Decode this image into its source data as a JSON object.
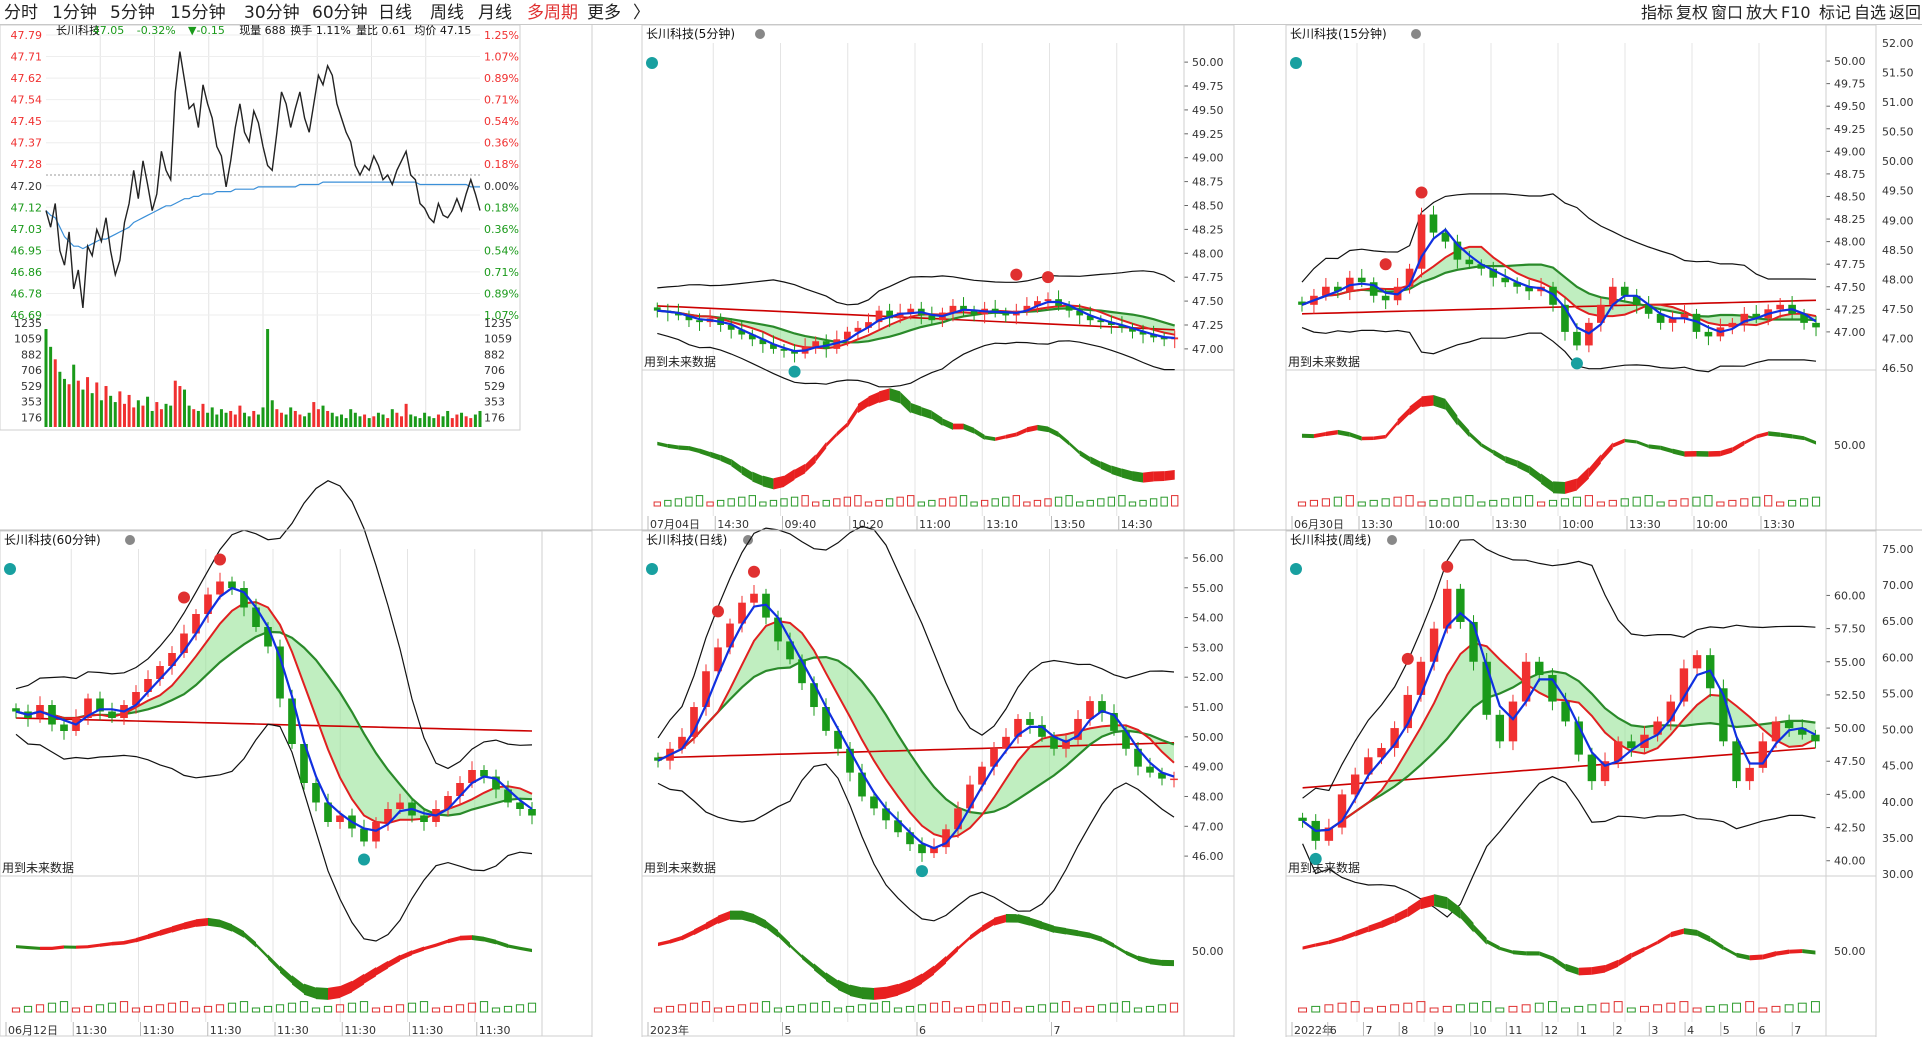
{
  "toolbar": {
    "periods": [
      "分时",
      "1分钟",
      "5分钟",
      "15分钟",
      "30分钟",
      "60分钟",
      "日线",
      "周线",
      "月线",
      "多周期",
      "更多"
    ],
    "selected": "多周期",
    "more_arrow": "〉",
    "right_items": [
      "指标",
      "复权",
      "窗口",
      "放大",
      "F10",
      "标记",
      "自选",
      "返回"
    ]
  },
  "colors": {
    "up": "#f03030",
    "down": "#1a9a1a",
    "avg": "#3a8fd8",
    "blue": "#1030e0",
    "cloud": "#8de08d",
    "cyan": "#a8e4e8"
  },
  "note_text": "用到未来数据",
  "chart_data": [
    {
      "id": "intraday",
      "type": "line",
      "title": "长川科技",
      "info": {
        "price": "47.05",
        "change_pct": "-0.32%",
        "change_amt": "▼-0.15",
        "vol_label": "现量 688",
        "turnover_label": "换手 1.11%",
        "ratio_label": "量比 0.61",
        "avg_label": "均价 47.15"
      },
      "prev_close": 47.2,
      "ylim": [
        46.61,
        47.79
      ],
      "price_ticks": [
        "47.79",
        "47.71",
        "47.62",
        "47.54",
        "47.45",
        "47.37",
        "47.28",
        "47.20",
        "47.12",
        "47.03",
        "46.95",
        "46.86",
        "46.78",
        "46.69"
      ],
      "pct_ticks": [
        "1.25%",
        "1.07%",
        "0.89%",
        "0.71%",
        "0.54%",
        "0.36%",
        "0.18%",
        "0.00%",
        "0.18%",
        "0.36%",
        "0.54%",
        "0.71%",
        "0.89%",
        "1.07%"
      ],
      "vol_ticks": [
        "1235",
        "1059",
        "882",
        "706",
        "529",
        "353",
        "176"
      ],
      "price": [
        47.05,
        46.98,
        47.08,
        46.88,
        46.82,
        46.96,
        46.72,
        46.8,
        46.64,
        46.9,
        46.86,
        46.97,
        46.92,
        47.02,
        46.88,
        46.78,
        46.84,
        47.0,
        47.08,
        47.22,
        47.1,
        47.26,
        47.16,
        47.05,
        47.12,
        47.3,
        47.22,
        47.18,
        47.55,
        47.72,
        47.6,
        47.48,
        47.5,
        47.4,
        47.58,
        47.5,
        47.44,
        47.32,
        47.28,
        47.15,
        47.26,
        47.4,
        47.5,
        47.38,
        47.34,
        47.47,
        47.42,
        47.32,
        47.24,
        47.22,
        47.38,
        47.55,
        47.5,
        47.4,
        47.48,
        47.55,
        47.44,
        47.38,
        47.5,
        47.62,
        47.58,
        47.66,
        47.62,
        47.5,
        47.44,
        47.38,
        47.34,
        47.24,
        47.2,
        47.24,
        47.22,
        47.28,
        47.24,
        47.18,
        47.2,
        47.16,
        47.22,
        47.26,
        47.3,
        47.2,
        47.18,
        47.08,
        47.06,
        47.02,
        47.0,
        47.08,
        47.03,
        47.02,
        47.05,
        47.1,
        47.05,
        47.12,
        47.18,
        47.12,
        47.05
      ],
      "avg": [
        47.05,
        47.03,
        47.02,
        46.98,
        46.94,
        46.92,
        46.9,
        46.9,
        46.89,
        46.9,
        46.91,
        46.92,
        46.93,
        46.93,
        46.94,
        46.95,
        46.96,
        46.97,
        46.98,
        47.0,
        47.01,
        47.02,
        47.03,
        47.04,
        47.05,
        47.06,
        47.07,
        47.07,
        47.08,
        47.09,
        47.1,
        47.1,
        47.11,
        47.11,
        47.12,
        47.12,
        47.12,
        47.13,
        47.13,
        47.13,
        47.13,
        47.14,
        47.14,
        47.14,
        47.14,
        47.14,
        47.15,
        47.15,
        47.15,
        47.15,
        47.15,
        47.15,
        47.15,
        47.15,
        47.15,
        47.16,
        47.16,
        47.16,
        47.16,
        47.16,
        47.17,
        47.17,
        47.17,
        47.17,
        47.17,
        47.17,
        47.17,
        47.17,
        47.17,
        47.17,
        47.17,
        47.17,
        47.17,
        47.17,
        47.17,
        47.17,
        47.17,
        47.17,
        47.17,
        47.17,
        47.17,
        47.16,
        47.16,
        47.16,
        47.16,
        47.16,
        47.16,
        47.16,
        47.16,
        47.16,
        47.16,
        47.16,
        47.15,
        47.15,
        47.15
      ],
      "volume": [
        1100,
        900,
        760,
        620,
        540,
        480,
        700,
        520,
        420,
        560,
        380,
        500,
        300,
        460,
        350,
        280,
        400,
        260,
        360,
        220,
        300,
        240,
        340,
        180,
        280,
        200,
        260,
        240,
        520,
        460,
        420,
        240,
        200,
        180,
        260,
        160,
        220,
        140,
        200,
        160,
        180,
        140,
        240,
        160,
        120,
        180,
        140,
        220,
        1100,
        300,
        200,
        160,
        140,
        220,
        180,
        140,
        120,
        160,
        280,
        200,
        240,
        180,
        160,
        120,
        140,
        100,
        200,
        160,
        120,
        140,
        100,
        120,
        160,
        140,
        100,
        200,
        160,
        120,
        260,
        140,
        120,
        100,
        160,
        120,
        100,
        140,
        120,
        180,
        100,
        140,
        160,
        120,
        100,
        140,
        180
      ]
    },
    {
      "id": "k5",
      "type": "candlestick",
      "title": "长川科技(5分钟)",
      "ylim": [
        46.8,
        50.2
      ],
      "y_ticks": [
        "50.00",
        "49.75",
        "49.50",
        "49.25",
        "49.00",
        "48.75",
        "48.50",
        "48.25",
        "48.00",
        "47.75",
        "47.50",
        "47.25",
        "47.00"
      ],
      "x_labels": [
        "07月04日",
        "14:30",
        "09:40",
        "10:20",
        "11:00",
        "13:10",
        "13:50",
        "14:30"
      ],
      "osc_tick": "",
      "closes": [
        47.4,
        47.38,
        47.35,
        47.3,
        47.28,
        47.32,
        47.25,
        47.2,
        47.15,
        47.1,
        47.05,
        47.0,
        46.98,
        46.95,
        47.02,
        47.08,
        47.0,
        47.1,
        47.18,
        47.22,
        47.28,
        47.4,
        47.32,
        47.38,
        47.42,
        47.35,
        47.3,
        47.38,
        47.45,
        47.4,
        47.36,
        47.42,
        47.38,
        47.35,
        47.4,
        47.45,
        47.5,
        47.52,
        47.45,
        47.4,
        47.35,
        47.3,
        47.28,
        47.25,
        47.22,
        47.18,
        47.15,
        47.12,
        47.1,
        47.12
      ],
      "mean_start": 47.45,
      "mean_end": 47.2
    },
    {
      "id": "k15",
      "type": "candlestick",
      "title": "长川科技(15分钟)",
      "ylim": [
        46.6,
        50.2
      ],
      "y_ticks": [
        "50.00",
        "49.75",
        "49.50",
        "49.25",
        "49.00",
        "48.75",
        "48.50",
        "48.25",
        "48.00",
        "47.75",
        "47.50",
        "47.25",
        "47.00"
      ],
      "right_ticks": [
        "52.00",
        "51.50",
        "51.00",
        "50.50",
        "50.00",
        "49.50",
        "49.00",
        "48.50",
        "48.00",
        "47.50",
        "47.00",
        "46.50"
      ],
      "x_labels": [
        "06月30日",
        "13:30",
        "10:00",
        "13:30",
        "10:00",
        "13:30",
        "10:00",
        "13:30"
      ],
      "osc_tick": "50.00",
      "closes": [
        47.3,
        47.4,
        47.5,
        47.45,
        47.6,
        47.55,
        47.4,
        47.35,
        47.5,
        47.7,
        48.3,
        48.1,
        48.0,
        47.8,
        47.75,
        47.7,
        47.6,
        47.55,
        47.5,
        47.45,
        47.5,
        47.3,
        47.0,
        46.85,
        47.1,
        47.3,
        47.5,
        47.4,
        47.3,
        47.2,
        47.1,
        47.15,
        47.2,
        47.0,
        46.95,
        47.05,
        47.1,
        47.2,
        47.15,
        47.25,
        47.3,
        47.2,
        47.1,
        47.05
      ],
      "mean_start": 47.2,
      "mean_end": 47.35
    },
    {
      "id": "k60",
      "type": "candlestick",
      "title": "长川科技(60分钟)",
      "ylim": [
        46.5,
        51.5
      ],
      "y_ticks": [],
      "x_labels": [
        "06月12日",
        "11:30",
        "11:30",
        "11:30",
        "11:30",
        "11:30",
        "11:30",
        "11:30"
      ],
      "osc_tick": "",
      "closes": [
        49.0,
        48.9,
        49.1,
        48.8,
        48.7,
        48.9,
        49.2,
        49.0,
        48.9,
        49.1,
        49.3,
        49.5,
        49.7,
        49.9,
        50.2,
        50.5,
        50.8,
        51.0,
        50.9,
        50.6,
        50.3,
        50.0,
        49.2,
        48.5,
        47.9,
        47.6,
        47.3,
        47.4,
        47.2,
        47.0,
        47.3,
        47.5,
        47.6,
        47.4,
        47.3,
        47.5,
        47.7,
        47.9,
        48.1,
        48.0,
        47.8,
        47.6,
        47.5,
        47.4
      ],
      "mean_start": 48.9,
      "mean_end": 48.7
    },
    {
      "id": "kday",
      "type": "candlestick",
      "title": "长川科技(日线)",
      "ylim": [
        45.4,
        56.3
      ],
      "y_ticks": [
        "56.00",
        "55.00",
        "54.00",
        "53.00",
        "52.00",
        "51.00",
        "50.00",
        "49.00",
        "48.00",
        "47.00",
        "46.00"
      ],
      "x_labels": [
        "2023年",
        "5",
        "6",
        "7"
      ],
      "osc_tick": "50.00",
      "closes": [
        49.2,
        49.6,
        50.0,
        51.0,
        52.2,
        53.0,
        53.8,
        54.5,
        54.8,
        54.0,
        53.2,
        52.6,
        51.8,
        51.0,
        50.2,
        49.6,
        48.8,
        48.0,
        47.6,
        47.2,
        46.8,
        46.4,
        46.1,
        46.3,
        46.9,
        47.6,
        48.4,
        49.0,
        49.6,
        50.0,
        50.6,
        50.4,
        50.0,
        49.6,
        49.9,
        50.6,
        51.2,
        50.8,
        50.2,
        49.6,
        49.0,
        48.8,
        48.6,
        48.6
      ],
      "mean_start": 49.3,
      "mean_end": 49.8
    },
    {
      "id": "kweek",
      "type": "candlestick",
      "title": "长川科技(周线)",
      "ylim": [
        39.0,
        63.5
      ],
      "y_ticks": [
        "60.00",
        "57.50",
        "55.00",
        "52.50",
        "50.00",
        "47.50",
        "45.00",
        "42.50",
        "40.00"
      ],
      "right_ticks": [
        "75.00",
        "70.00",
        "65.00",
        "60.00",
        "55.00",
        "50.00",
        "45.00",
        "40.00",
        "35.00",
        "30.00"
      ],
      "x_labels": [
        "2022年",
        "6",
        "7",
        "8",
        "9",
        "10",
        "11",
        "12",
        "1",
        "2",
        "3",
        "4",
        "5",
        "6",
        "7"
      ],
      "osc_tick": "50.00",
      "closes": [
        43.0,
        41.5,
        42.5,
        45.0,
        46.5,
        47.8,
        48.5,
        50.0,
        52.5,
        55.0,
        57.5,
        60.5,
        58.0,
        55.0,
        51.0,
        49.0,
        52.0,
        55.0,
        54.0,
        52.0,
        50.5,
        48.0,
        46.0,
        47.5,
        49.0,
        48.5,
        49.5,
        50.5,
        52.0,
        54.5,
        55.5,
        53.0,
        49.0,
        46.0,
        47.0,
        49.0,
        50.5,
        50.0,
        49.5,
        49.0
      ],
      "mean_start": 45.5,
      "mean_end": 48.5
    }
  ]
}
